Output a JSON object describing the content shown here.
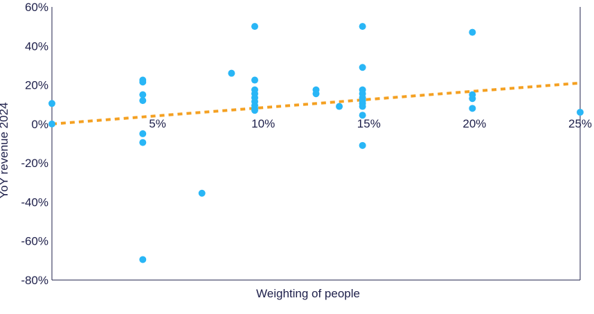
{
  "chart_data": {
    "type": "scatter",
    "title": "",
    "xlabel": "Weighting of people",
    "ylabel": "YoY revenue 2024",
    "xlim": [
      0,
      25
    ],
    "ylim": [
      -80,
      60
    ],
    "x_ticks": [
      {
        "value": 5,
        "label": "5%"
      },
      {
        "value": 10,
        "label": "10%"
      },
      {
        "value": 15,
        "label": "15%"
      },
      {
        "value": 20,
        "label": "20%"
      },
      {
        "value": 25,
        "label": "25%"
      }
    ],
    "y_ticks": [
      {
        "value": 60,
        "label": "60%"
      },
      {
        "value": 40,
        "label": "40%"
      },
      {
        "value": 20,
        "label": "20%"
      },
      {
        "value": 0,
        "label": "0%"
      },
      {
        "value": -20,
        "label": "-20%"
      },
      {
        "value": -40,
        "label": "-40%"
      },
      {
        "value": -60,
        "label": "-60%"
      },
      {
        "value": -80,
        "label": "-80%"
      }
    ],
    "grid": false,
    "series": [
      {
        "type": "scatter",
        "color": "#29b6f6",
        "points": [
          {
            "x": 0,
            "y": 10.5
          },
          {
            "x": 0,
            "y": 0
          },
          {
            "x": 4.3,
            "y": 22.5
          },
          {
            "x": 4.3,
            "y": 21.5
          },
          {
            "x": 4.3,
            "y": 15
          },
          {
            "x": 4.3,
            "y": 12
          },
          {
            "x": 4.3,
            "y": -5
          },
          {
            "x": 4.3,
            "y": -9.5
          },
          {
            "x": 4.3,
            "y": -69.5
          },
          {
            "x": 7.1,
            "y": -35.5
          },
          {
            "x": 8.5,
            "y": 26
          },
          {
            "x": 9.6,
            "y": 50
          },
          {
            "x": 9.6,
            "y": 22.5
          },
          {
            "x": 9.6,
            "y": 17.5
          },
          {
            "x": 9.6,
            "y": 15.5
          },
          {
            "x": 9.6,
            "y": 13.5
          },
          {
            "x": 9.6,
            "y": 11.5
          },
          {
            "x": 9.6,
            "y": 9.5
          },
          {
            "x": 9.6,
            "y": 8
          },
          {
            "x": 9.6,
            "y": 7
          },
          {
            "x": 12.5,
            "y": 17.5
          },
          {
            "x": 12.5,
            "y": 15.5
          },
          {
            "x": 13.6,
            "y": 9
          },
          {
            "x": 14.7,
            "y": 50
          },
          {
            "x": 14.7,
            "y": 29
          },
          {
            "x": 14.7,
            "y": 17.5
          },
          {
            "x": 14.7,
            "y": 15.5
          },
          {
            "x": 14.7,
            "y": 13.5
          },
          {
            "x": 14.7,
            "y": 12
          },
          {
            "x": 14.7,
            "y": 10.5
          },
          {
            "x": 14.7,
            "y": 9
          },
          {
            "x": 14.7,
            "y": 4.5
          },
          {
            "x": 14.7,
            "y": -11
          },
          {
            "x": 19.9,
            "y": 47
          },
          {
            "x": 19.9,
            "y": 15
          },
          {
            "x": 19.9,
            "y": 13
          },
          {
            "x": 19.9,
            "y": 8
          },
          {
            "x": 25,
            "y": 6
          }
        ]
      }
    ],
    "trendline": {
      "type": "linear",
      "color": "#f4a021",
      "style": "dotted",
      "from": {
        "x": 0,
        "y": 0
      },
      "to": {
        "x": 25,
        "y": 21
      }
    }
  }
}
